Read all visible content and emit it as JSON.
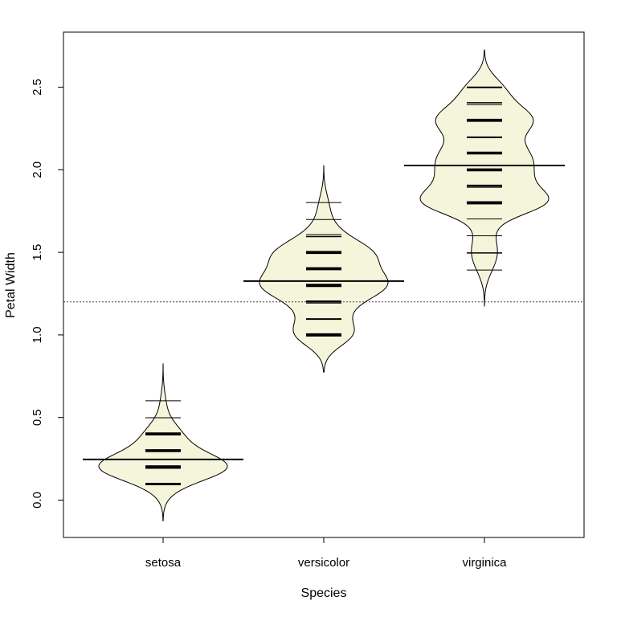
{
  "chart_data": {
    "type": "beanplot",
    "xlabel": "Species",
    "ylabel": "Petal Width",
    "categories": [
      "setosa",
      "versicolor",
      "virginica"
    ],
    "ylim": [
      -0.25,
      2.8
    ],
    "y_ticks": [
      "0.0",
      "0.5",
      "1.0",
      "1.5",
      "2.0",
      "2.5"
    ],
    "y_tick_values": [
      0.0,
      0.5,
      1.0,
      1.5,
      2.0,
      2.5
    ],
    "overall_mean": 1.2,
    "bean_fill": "#f5f5dc",
    "beans": [
      {
        "name": "setosa",
        "mean": 0.246,
        "values": [
          0.1,
          0.1,
          0.1,
          0.1,
          0.1,
          0.2,
          0.2,
          0.2,
          0.2,
          0.2,
          0.2,
          0.2,
          0.2,
          0.2,
          0.2,
          0.2,
          0.2,
          0.2,
          0.2,
          0.2,
          0.2,
          0.2,
          0.2,
          0.2,
          0.2,
          0.2,
          0.2,
          0.2,
          0.2,
          0.2,
          0.2,
          0.2,
          0.2,
          0.2,
          0.3,
          0.3,
          0.3,
          0.3,
          0.3,
          0.3,
          0.3,
          0.4,
          0.4,
          0.4,
          0.4,
          0.4,
          0.4,
          0.4,
          0.5,
          0.6
        ]
      },
      {
        "name": "versicolor",
        "mean": 1.326,
        "values": [
          1.0,
          1.0,
          1.0,
          1.0,
          1.0,
          1.0,
          1.0,
          1.1,
          1.1,
          1.1,
          1.2,
          1.2,
          1.2,
          1.2,
          1.2,
          1.3,
          1.3,
          1.3,
          1.3,
          1.3,
          1.3,
          1.3,
          1.3,
          1.3,
          1.3,
          1.3,
          1.3,
          1.3,
          1.4,
          1.4,
          1.4,
          1.4,
          1.4,
          1.4,
          1.4,
          1.5,
          1.5,
          1.5,
          1.5,
          1.5,
          1.5,
          1.5,
          1.5,
          1.5,
          1.5,
          1.6,
          1.6,
          1.6,
          1.7,
          1.8
        ]
      },
      {
        "name": "virginica",
        "mean": 2.026,
        "values": [
          1.4,
          1.5,
          1.5,
          1.6,
          1.7,
          1.8,
          1.8,
          1.8,
          1.8,
          1.8,
          1.8,
          1.8,
          1.8,
          1.8,
          1.8,
          1.8,
          1.9,
          1.9,
          1.9,
          1.9,
          1.9,
          2.0,
          2.0,
          2.0,
          2.0,
          2.0,
          2.0,
          2.1,
          2.1,
          2.1,
          2.1,
          2.1,
          2.1,
          2.2,
          2.2,
          2.2,
          2.3,
          2.3,
          2.3,
          2.3,
          2.3,
          2.3,
          2.3,
          2.3,
          2.4,
          2.4,
          2.4,
          2.5,
          2.5,
          2.5
        ]
      }
    ]
  }
}
